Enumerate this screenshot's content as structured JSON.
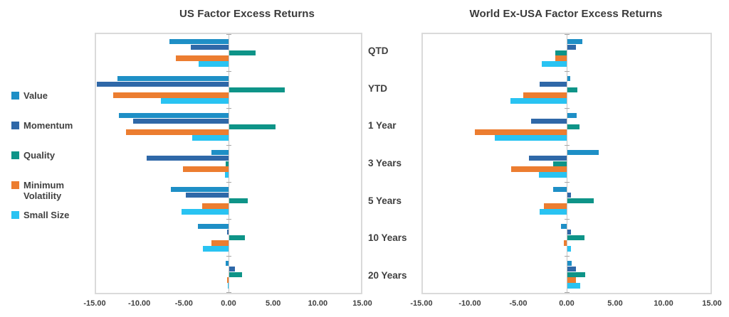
{
  "colors": {
    "value": "#1e8fc6",
    "momentum": "#2f68a8",
    "quality": "#0e9488",
    "minimum_volatility": "#ec7d30",
    "small_size": "#29c3f2",
    "title_text": "#3a3a3a",
    "axis_text": "#404040",
    "plot_border": "#dadada",
    "zero_line": "#c3c3c3"
  },
  "legend": {
    "items": [
      {
        "label": "Value",
        "color": "#1e8fc6"
      },
      {
        "label": "Momentum",
        "color": "#2f68a8"
      },
      {
        "label": "Quality",
        "color": "#0e9488"
      },
      {
        "label": "Minimum Volatility",
        "color": "#ec7d30"
      },
      {
        "label": "Small Size",
        "color": "#29c3f2"
      }
    ]
  },
  "chart_data": [
    {
      "type": "bar",
      "orientation": "horizontal",
      "title": "US Factor Excess Returns",
      "categories": [
        "QTD",
        "YTD",
        "1 Year",
        "3 Years",
        "5 Years",
        "10 Years",
        "20 Years"
      ],
      "xlim": [
        -15,
        15
      ],
      "x_tick_labels": [
        "-15.00",
        "-10.00",
        "-5.00",
        "0.00",
        "5.00",
        "10.00",
        "15.00"
      ],
      "grid": false,
      "legend_position": "left",
      "series": [
        {
          "name": "Value",
          "color": "#1e8fc6",
          "values": [
            -6.7,
            -12.6,
            -12.4,
            -1.9,
            -6.5,
            -3.5,
            -0.3
          ]
        },
        {
          "name": "Momentum",
          "color": "#2f68a8",
          "values": [
            -4.3,
            -14.9,
            -10.8,
            -9.3,
            -4.8,
            -0.2,
            0.7
          ]
        },
        {
          "name": "Quality",
          "color": "#0e9488",
          "values": [
            3.0,
            6.3,
            5.3,
            -0.3,
            2.1,
            1.8,
            1.5
          ]
        },
        {
          "name": "Minimum Volatility",
          "color": "#ec7d30",
          "values": [
            -6.0,
            -13.1,
            -11.6,
            -5.2,
            -3.0,
            -1.9,
            -0.2
          ]
        },
        {
          "name": "Small Size",
          "color": "#29c3f2",
          "values": [
            -3.4,
            -7.7,
            -4.1,
            -0.4,
            -5.3,
            -2.9,
            -0.1
          ]
        }
      ]
    },
    {
      "type": "bar",
      "orientation": "horizontal",
      "title": "World Ex-USA Factor Excess Returns",
      "categories": [
        "QTD",
        "YTD",
        "1 Year",
        "3 Years",
        "5 Years",
        "10 Years",
        "20 Years"
      ],
      "xlim": [
        -15,
        15
      ],
      "x_tick_labels": [
        "-15.00",
        "-10.00",
        "-5.00",
        "0.00",
        "5.00",
        "10.00",
        "15.00"
      ],
      "grid": false,
      "legend_position": "shared-left",
      "series": [
        {
          "name": "Value",
          "color": "#1e8fc6",
          "values": [
            1.6,
            0.3,
            1.0,
            3.3,
            -1.4,
            -0.6,
            0.5
          ]
        },
        {
          "name": "Momentum",
          "color": "#2f68a8",
          "values": [
            0.9,
            -2.8,
            -3.7,
            -3.9,
            0.4,
            0.4,
            0.9
          ]
        },
        {
          "name": "Quality",
          "color": "#0e9488",
          "values": [
            -1.2,
            1.1,
            1.3,
            -1.4,
            2.8,
            1.8,
            1.9
          ]
        },
        {
          "name": "Minimum Volatility",
          "color": "#ec7d30",
          "values": [
            -1.2,
            -4.5,
            -9.6,
            -5.8,
            -2.4,
            -0.3,
            0.9
          ]
        },
        {
          "name": "Small Size",
          "color": "#29c3f2",
          "values": [
            -2.6,
            -5.9,
            -7.5,
            -2.9,
            -2.8,
            0.4,
            1.4
          ]
        }
      ]
    }
  ]
}
